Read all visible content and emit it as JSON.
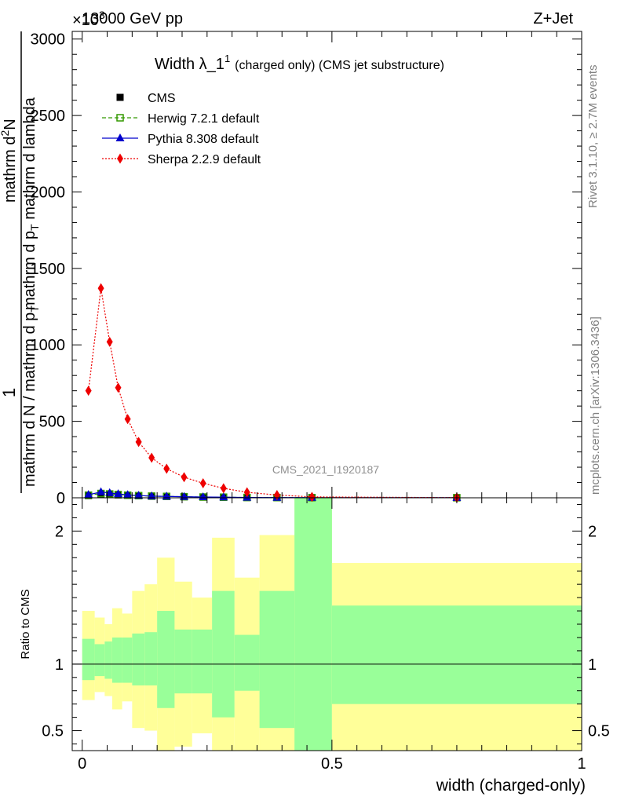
{
  "header": {
    "energy_label": "13000 GeV pp",
    "process_label": "Z+Jet",
    "exponent_label": "×10",
    "exponent_sup": "3"
  },
  "side_labels": {
    "rivet": "Rivet 3.1.10, ≥ 2.7M events",
    "mcplots": "mcplots.cern.ch [arXiv:1306.3436]"
  },
  "watermark": "CMS_2021_I1920187",
  "chart_data": [
    {
      "type": "line",
      "title": "Width λ_1",
      "title_sup": "1",
      "title_suffix": "(charged only) (CMS jet substructure)",
      "ylabel_one": "1",
      "ylabel_denominator": "mathrm d N / mathrm d p",
      "ylabel_denominator_sub": "T",
      "ylabel_numerator": "mathrm d",
      "ylabel_numerator_sup": "2",
      "ylabel_numerator_rest": "N",
      "ylabel_lambda": "mathrm d p",
      "ylabel_lambda_sub": "T",
      "ylabel_lambda_rest": " mathrm d lambda",
      "ylim": [
        0,
        3050
      ],
      "xlim": [
        -0.02,
        1.0
      ],
      "y_ticks": [
        0,
        500,
        1000,
        1500,
        2000,
        2500,
        3000
      ],
      "y_tick_labels": [
        "0",
        "500",
        "1000",
        "1500",
        "2000",
        "2500",
        "3000"
      ],
      "legend_position": "top-left",
      "series": [
        {
          "name": "CMS",
          "color": "#000000",
          "marker": "filled-square",
          "line": "none",
          "x": [
            0.0125,
            0.0375,
            0.055,
            0.072,
            0.091,
            0.113,
            0.139,
            0.169,
            0.204,
            0.242,
            0.283,
            0.33,
            0.39,
            0.46,
            0.75
          ],
          "y": [
            14,
            24,
            22,
            19,
            16,
            13,
            10,
            8,
            7,
            5,
            4,
            2,
            1.5,
            1,
            0.5
          ]
        },
        {
          "name": "Herwig 7.2.1 default",
          "color": "#339900",
          "marker": "open-square",
          "line": "dashed",
          "x": [
            0.0125,
            0.0375,
            0.055,
            0.072,
            0.091,
            0.113,
            0.139,
            0.169,
            0.204,
            0.242,
            0.283,
            0.33,
            0.39,
            0.46,
            0.75
          ],
          "y": [
            17,
            28,
            25,
            21,
            17,
            14,
            11,
            9,
            7,
            5,
            4,
            2,
            1.5,
            1,
            0.5
          ]
        },
        {
          "name": "Pythia 8.308 default",
          "color": "#0000cc",
          "marker": "filled-triangle",
          "line": "solid",
          "x": [
            0.0125,
            0.0375,
            0.055,
            0.072,
            0.091,
            0.113,
            0.139,
            0.169,
            0.204,
            0.242,
            0.283,
            0.33,
            0.39,
            0.46,
            0.75
          ],
          "y": [
            20,
            38,
            32,
            25,
            19,
            15,
            11,
            9,
            7,
            5,
            4,
            2,
            1.5,
            1,
            0.5
          ]
        },
        {
          "name": "Sherpa 2.2.9 default",
          "color": "#ee0000",
          "marker": "filled-diamond",
          "line": "dotted",
          "x": [
            0.0125,
            0.0375,
            0.055,
            0.072,
            0.091,
            0.113,
            0.139,
            0.169,
            0.204,
            0.242,
            0.283,
            0.33,
            0.39,
            0.46,
            0.75
          ],
          "y": [
            700,
            1370,
            1020,
            720,
            515,
            365,
            262,
            190,
            135,
            95,
            62,
            36,
            18,
            6,
            1
          ]
        }
      ]
    },
    {
      "type": "area",
      "ylabel": "Ratio to CMS",
      "xlabel": "width (charged-only)",
      "ylim": [
        0.35,
        2.25
      ],
      "xlim": [
        -0.02,
        1.0
      ],
      "x_ticks": [
        0,
        0.5,
        1
      ],
      "x_tick_labels": [
        "0",
        "0.5",
        "1"
      ],
      "y_ticks": [
        0.5,
        1,
        2
      ],
      "y_tick_labels": [
        "0.5",
        "1",
        "2"
      ],
      "reference_line": 1,
      "bins": [
        {
          "lo": 0.0,
          "hi": 0.025,
          "green": [
            0.88,
            1.19
          ],
          "yellow": [
            0.73,
            1.4
          ]
        },
        {
          "lo": 0.025,
          "hi": 0.045,
          "green": [
            0.91,
            1.15
          ],
          "yellow": [
            0.79,
            1.35
          ]
        },
        {
          "lo": 0.045,
          "hi": 0.06,
          "green": [
            0.89,
            1.17
          ],
          "yellow": [
            0.76,
            1.3
          ]
        },
        {
          "lo": 0.06,
          "hi": 0.08,
          "green": [
            0.86,
            1.2
          ],
          "yellow": [
            0.66,
            1.42
          ]
        },
        {
          "lo": 0.08,
          "hi": 0.1,
          "green": [
            0.86,
            1.2
          ],
          "yellow": [
            0.72,
            1.38
          ]
        },
        {
          "lo": 0.1,
          "hi": 0.125,
          "green": [
            0.84,
            1.23
          ],
          "yellow": [
            0.52,
            1.55
          ]
        },
        {
          "lo": 0.125,
          "hi": 0.15,
          "green": [
            0.84,
            1.24
          ],
          "yellow": [
            0.5,
            1.6
          ]
        },
        {
          "lo": 0.15,
          "hi": 0.185,
          "green": [
            0.67,
            1.4
          ],
          "yellow": [
            0.35,
            1.8
          ]
        },
        {
          "lo": 0.185,
          "hi": 0.22,
          "green": [
            0.78,
            1.26
          ],
          "yellow": [
            0.38,
            1.62
          ]
        },
        {
          "lo": 0.22,
          "hi": 0.26,
          "green": [
            0.78,
            1.26
          ],
          "yellow": [
            0.48,
            1.5
          ]
        },
        {
          "lo": 0.26,
          "hi": 0.305,
          "green": [
            0.6,
            1.55
          ],
          "yellow": [
            0.35,
            1.95
          ]
        },
        {
          "lo": 0.305,
          "hi": 0.355,
          "green": [
            0.8,
            1.22
          ],
          "yellow": [
            0.35,
            1.65
          ]
        },
        {
          "lo": 0.355,
          "hi": 0.425,
          "green": [
            0.52,
            1.55
          ],
          "yellow": [
            0.35,
            1.97
          ]
        },
        {
          "lo": 0.425,
          "hi": 0.5,
          "green": [
            0.35,
            2.25
          ],
          "yellow": [
            0.35,
            2.25
          ]
        },
        {
          "lo": 0.5,
          "hi": 1.0,
          "green": [
            0.7,
            1.44
          ],
          "yellow": [
            0.35,
            1.76
          ]
        }
      ]
    }
  ]
}
